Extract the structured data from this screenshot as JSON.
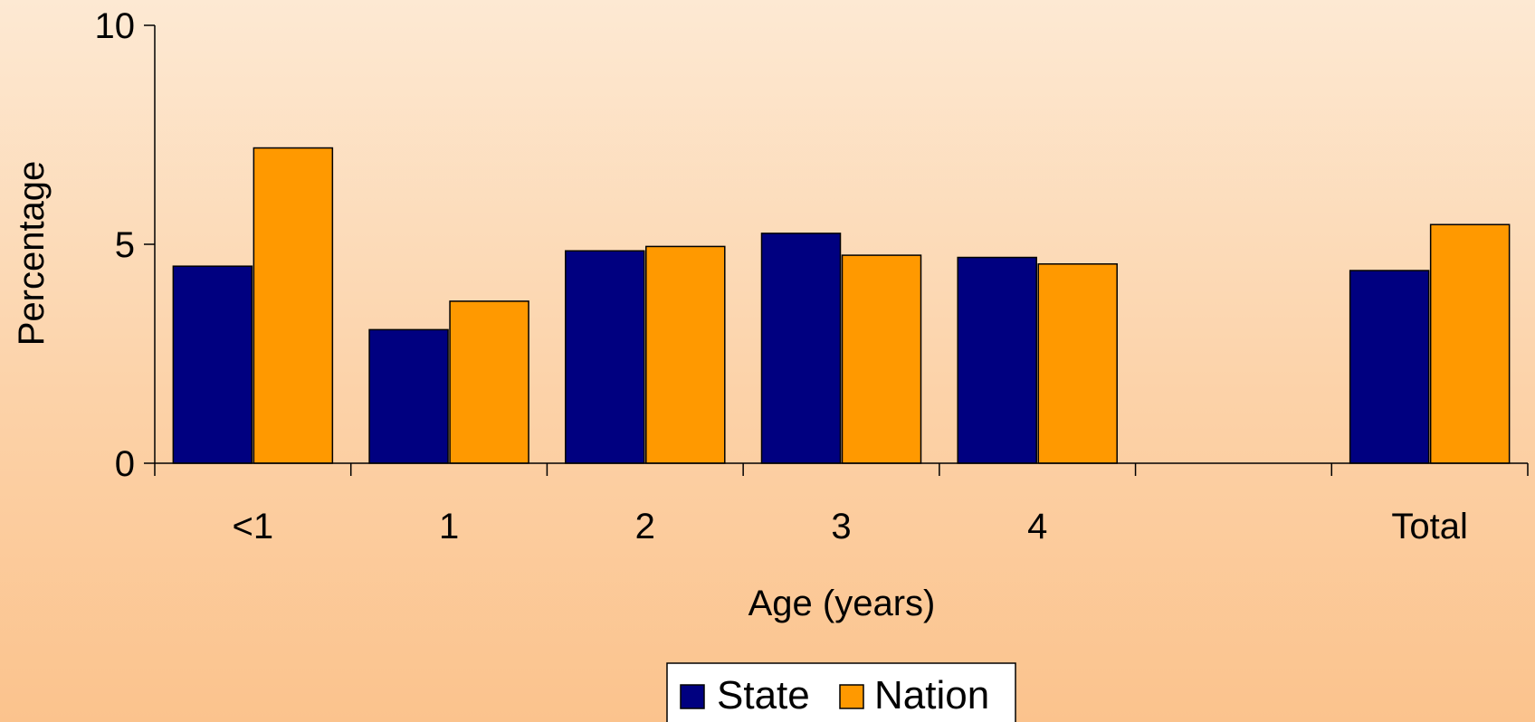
{
  "chart_data": {
    "type": "bar",
    "categories": [
      "<1",
      "1",
      "2",
      "3",
      "4",
      "",
      "Total"
    ],
    "series": [
      {
        "name": "State",
        "color": "#000080",
        "values": [
          4.5,
          3.05,
          4.85,
          5.25,
          4.7,
          null,
          4.4
        ]
      },
      {
        "name": "Nation",
        "color": "#ff9900",
        "values": [
          7.2,
          3.7,
          4.95,
          4.75,
          4.55,
          null,
          5.45
        ]
      }
    ],
    "xlabel": "Age (years)",
    "ylabel": "Percentage",
    "ylim": [
      0,
      10
    ],
    "yticks": [
      "0",
      "5",
      "10"
    ],
    "grid": false,
    "legend_position": "bottom-center"
  }
}
